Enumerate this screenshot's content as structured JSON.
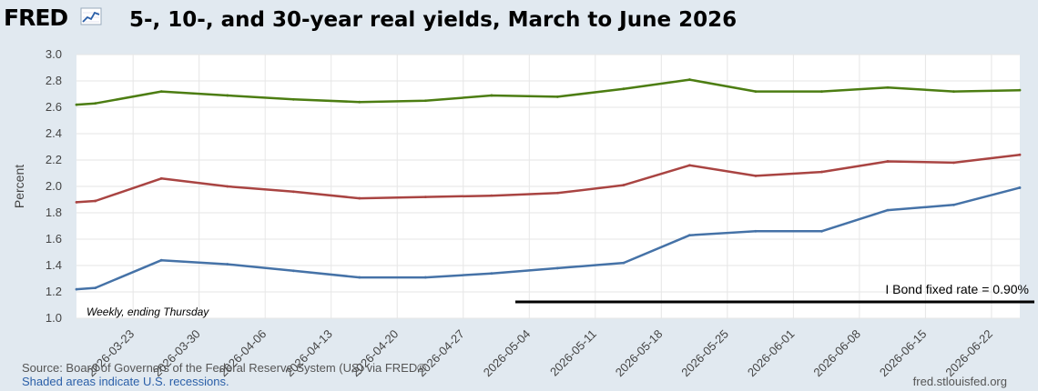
{
  "header": {
    "logo": "FRED",
    "logo_icon": "trend-line-icon",
    "title": "5-, 10-, and 30-year real yields, March to June 2026"
  },
  "footer": {
    "source": "Source: Board of Governors of the Federal Reserve System (US) via FRED®",
    "recessions": "Shaded areas indicate U.S. recessions.",
    "url": "fred.stlouisfed.org"
  },
  "colors": {
    "background": "#e1e9f0",
    "plot_background": "#ffffff",
    "grid": "#e6e6e6",
    "series_30y": "#4c7d12",
    "series_10y": "#a94442",
    "series_5y": "#4572a7"
  },
  "chart_data": {
    "type": "line",
    "ylabel": "Percent",
    "ylim": [
      1.0,
      3.0
    ],
    "yticks": [
      "1.0",
      "1.2",
      "1.4",
      "1.6",
      "1.8",
      "2.0",
      "2.2",
      "2.4",
      "2.6",
      "2.8",
      "3.0"
    ],
    "xlim": [
      "2026-03-17",
      "2026-06-25"
    ],
    "xticks": [
      "2026-03-23",
      "2026-03-30",
      "2026-04-06",
      "2026-04-13",
      "2026-04-20",
      "2026-04-27",
      "2026-05-04",
      "2026-05-11",
      "2026-05-18",
      "2026-05-25",
      "2026-06-01",
      "2026-06-08",
      "2026-06-15",
      "2026-06-22"
    ],
    "grid": true,
    "annotations": {
      "frequency_note": "Weekly, ending Thursday",
      "reference_label": "I Bond fixed rate = 0.90%"
    },
    "series": [
      {
        "color": "#4c7d12",
        "x": [
          "2026-03-17",
          "2026-03-19",
          "2026-03-26",
          "2026-04-02",
          "2026-04-09",
          "2026-04-16",
          "2026-04-23",
          "2026-04-30",
          "2026-05-07",
          "2026-05-14",
          "2026-05-21",
          "2026-05-28",
          "2026-06-04",
          "2026-06-11",
          "2026-06-18",
          "2026-06-25"
        ],
        "values": [
          2.62,
          2.63,
          2.72,
          2.69,
          2.66,
          2.64,
          2.65,
          2.69,
          2.68,
          2.74,
          2.81,
          2.72,
          2.72,
          2.75,
          2.72,
          2.73
        ]
      },
      {
        "color": "#a94442",
        "x": [
          "2026-03-17",
          "2026-03-19",
          "2026-03-26",
          "2026-04-02",
          "2026-04-09",
          "2026-04-16",
          "2026-04-23",
          "2026-04-30",
          "2026-05-07",
          "2026-05-14",
          "2026-05-21",
          "2026-05-28",
          "2026-06-04",
          "2026-06-11",
          "2026-06-18",
          "2026-06-25"
        ],
        "values": [
          1.88,
          1.89,
          2.06,
          2.0,
          1.96,
          1.91,
          1.92,
          1.93,
          1.95,
          2.01,
          2.16,
          2.08,
          2.11,
          2.19,
          2.18,
          2.24
        ]
      },
      {
        "color": "#4572a7",
        "x": [
          "2026-03-17",
          "2026-03-19",
          "2026-03-26",
          "2026-04-02",
          "2026-04-09",
          "2026-04-16",
          "2026-04-23",
          "2026-04-30",
          "2026-05-07",
          "2026-05-14",
          "2026-05-21",
          "2026-05-28",
          "2026-06-04",
          "2026-06-11",
          "2026-06-18",
          "2026-06-25"
        ],
        "values": [
          1.22,
          1.23,
          1.44,
          1.41,
          1.36,
          1.31,
          1.31,
          1.34,
          1.38,
          1.42,
          1.63,
          1.66,
          1.66,
          1.82,
          1.86,
          1.99
        ]
      }
    ]
  }
}
